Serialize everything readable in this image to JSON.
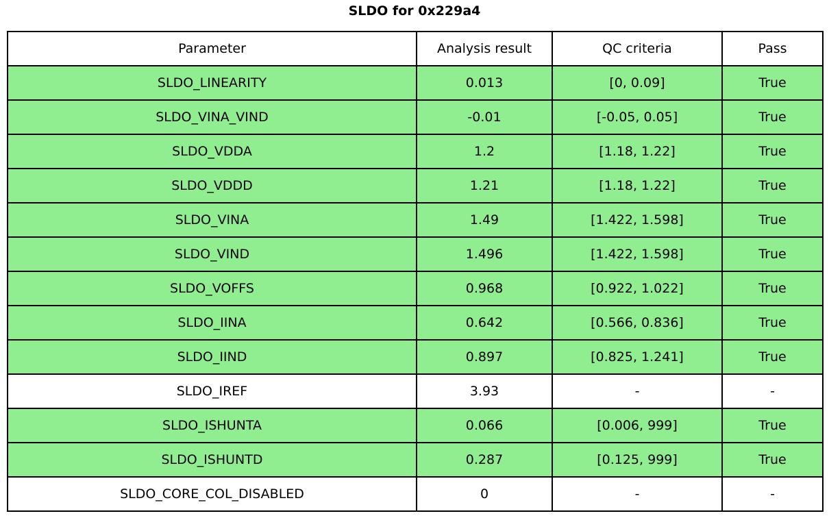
{
  "chart_data": {
    "type": "table",
    "title": "SLDO for 0x229a4",
    "columns": [
      "Parameter",
      "Analysis result",
      "QC criteria",
      "Pass"
    ],
    "rows": [
      {
        "parameter": "SLDO_LINEARITY",
        "result": "0.013",
        "criteria": "[0, 0.09]",
        "pass": "True",
        "highlighted": true
      },
      {
        "parameter": "SLDO_VINA_VIND",
        "result": "-0.01",
        "criteria": "[-0.05, 0.05]",
        "pass": "True",
        "highlighted": true
      },
      {
        "parameter": "SLDO_VDDA",
        "result": "1.2",
        "criteria": "[1.18, 1.22]",
        "pass": "True",
        "highlighted": true
      },
      {
        "parameter": "SLDO_VDDD",
        "result": "1.21",
        "criteria": "[1.18, 1.22]",
        "pass": "True",
        "highlighted": true
      },
      {
        "parameter": "SLDO_VINA",
        "result": "1.49",
        "criteria": "[1.422, 1.598]",
        "pass": "True",
        "highlighted": true
      },
      {
        "parameter": "SLDO_VIND",
        "result": "1.496",
        "criteria": "[1.422, 1.598]",
        "pass": "True",
        "highlighted": true
      },
      {
        "parameter": "SLDO_VOFFS",
        "result": "0.968",
        "criteria": "[0.922, 1.022]",
        "pass": "True",
        "highlighted": true
      },
      {
        "parameter": "SLDO_IINA",
        "result": "0.642",
        "criteria": "[0.566, 0.836]",
        "pass": "True",
        "highlighted": true
      },
      {
        "parameter": "SLDO_IIND",
        "result": "0.897",
        "criteria": "[0.825, 1.241]",
        "pass": "True",
        "highlighted": true
      },
      {
        "parameter": "SLDO_IREF",
        "result": "3.93",
        "criteria": "-",
        "pass": "-",
        "highlighted": false
      },
      {
        "parameter": "SLDO_ISHUNTA",
        "result": "0.066",
        "criteria": "[0.006, 999]",
        "pass": "True",
        "highlighted": true
      },
      {
        "parameter": "SLDO_ISHUNTD",
        "result": "0.287",
        "criteria": "[0.125, 999]",
        "pass": "True",
        "highlighted": true
      },
      {
        "parameter": "SLDO_CORE_COL_DISABLED",
        "result": "0",
        "criteria": "-",
        "pass": "-",
        "highlighted": false
      }
    ]
  },
  "colors": {
    "pass_row_bg": "#90ee90",
    "neutral_row_bg": "#ffffff",
    "border": "#000000",
    "text": "#000000"
  }
}
